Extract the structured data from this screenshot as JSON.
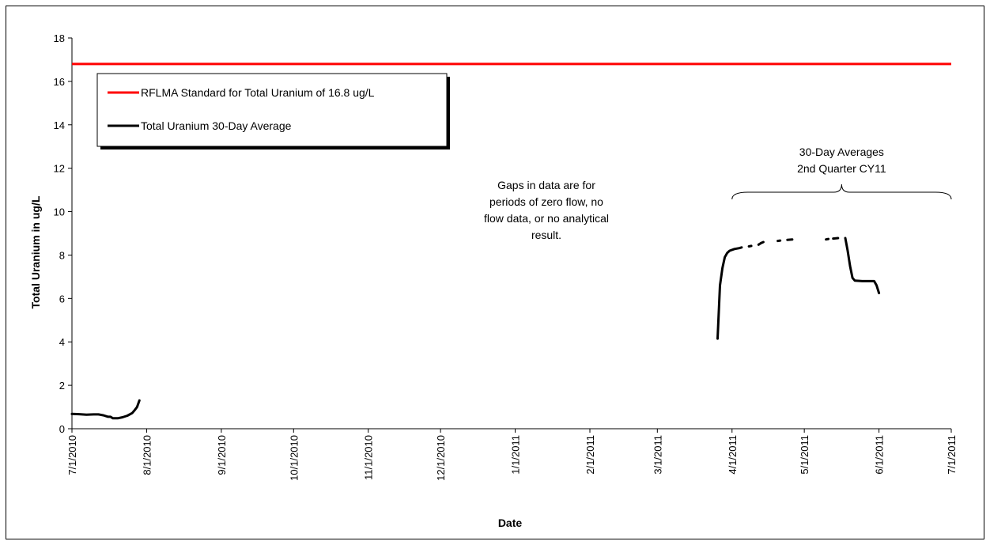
{
  "chart_data": {
    "type": "line",
    "title": "",
    "xlabel": "Date",
    "ylabel": "Total Uranium in ug/L",
    "ylim": [
      0,
      18
    ],
    "yticks": [
      0,
      2,
      4,
      6,
      8,
      10,
      12,
      14,
      16,
      18
    ],
    "xlim": [
      "7/1/2010",
      "7/1/2011"
    ],
    "xticks": [
      "7/1/2010",
      "8/1/2010",
      "9/1/2010",
      "10/1/2010",
      "11/1/2010",
      "12/1/2010",
      "1/1/2011",
      "2/1/2011",
      "3/1/2011",
      "4/1/2011",
      "5/1/2011",
      "6/1/2011",
      "7/1/2011"
    ],
    "grid": false,
    "legend_position": "top-left",
    "series": [
      {
        "name": "RFLMA Standard for Total Uranium of 16.8 ug/L",
        "color": "#ff0000",
        "kind": "reference",
        "points": [
          [
            "7/1/2010",
            16.8
          ],
          [
            "7/1/2011",
            16.8
          ]
        ]
      },
      {
        "name": "Total Uranium 30-Day Average",
        "color": "#000000",
        "kind": "data",
        "segments": [
          [
            [
              "7/1/2010",
              0.68
            ],
            [
              "7/4/2010",
              0.67
            ],
            [
              "7/7/2010",
              0.65
            ],
            [
              "7/10/2010",
              0.66
            ],
            [
              "7/12/2010",
              0.66
            ],
            [
              "7/14/2010",
              0.62
            ],
            [
              "7/16/2010",
              0.55
            ],
            [
              "7/17/2010",
              0.55
            ],
            [
              "7/18/2010",
              0.48
            ],
            [
              "7/20/2010",
              0.48
            ],
            [
              "7/22/2010",
              0.53
            ],
            [
              "7/24/2010",
              0.6
            ],
            [
              "7/26/2010",
              0.72
            ],
            [
              "7/27/2010",
              0.85
            ],
            [
              "7/28/2010",
              1.0
            ],
            [
              "7/29/2010",
              1.3
            ]
          ],
          [
            [
              "3/26/2011",
              4.15
            ],
            [
              "3/27/2011",
              6.6
            ],
            [
              "3/28/2011",
              7.4
            ],
            [
              "3/29/2011",
              7.9
            ],
            [
              "3/30/2011",
              8.1
            ],
            [
              "3/31/2011",
              8.2
            ],
            [
              "4/2/2011",
              8.28
            ],
            [
              "4/4/2011",
              8.32
            ],
            [
              "4/5/2011",
              8.35
            ]
          ],
          [
            [
              "4/8/2011",
              8.4
            ],
            [
              "4/9/2011",
              8.42
            ]
          ],
          [
            [
              "4/12/2011",
              8.48
            ],
            [
              "4/13/2011",
              8.55
            ],
            [
              "4/14/2011",
              8.6
            ]
          ],
          [
            [
              "4/20/2011",
              8.65
            ],
            [
              "4/21/2011",
              8.67
            ]
          ],
          [
            [
              "4/24/2011",
              8.7
            ],
            [
              "4/26/2011",
              8.72
            ]
          ],
          [
            [
              "5/10/2011",
              8.72
            ],
            [
              "5/11/2011",
              8.74
            ]
          ],
          [
            [
              "5/13/2011",
              8.76
            ],
            [
              "5/15/2011",
              8.78
            ]
          ],
          [
            [
              "5/18/2011",
              8.78
            ],
            [
              "5/19/2011",
              8.2
            ],
            [
              "5/20/2011",
              7.5
            ],
            [
              "5/21/2011",
              6.95
            ],
            [
              "5/22/2011",
              6.82
            ],
            [
              "5/25/2011",
              6.8
            ],
            [
              "5/28/2011",
              6.8
            ],
            [
              "5/30/2011",
              6.8
            ],
            [
              "5/31/2011",
              6.6
            ],
            [
              "6/1/2011",
              6.25
            ]
          ]
        ]
      }
    ],
    "annotations": [
      {
        "lines": [
          "Gaps in data are for",
          "periods of zero flow, no",
          "flow data, or no analytical",
          "result."
        ]
      },
      {
        "lines": [
          "30-Day Averages",
          "2nd Quarter CY11"
        ],
        "bracket_from": "4/1/2011",
        "bracket_to": "7/1/2011"
      }
    ]
  }
}
